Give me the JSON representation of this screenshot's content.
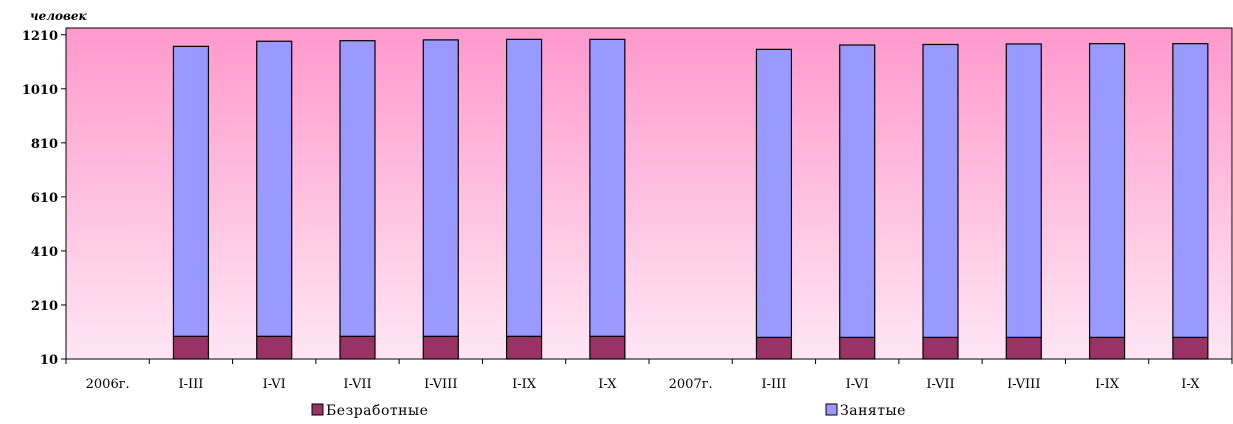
{
  "chart_data": {
    "type": "bar",
    "stacked": true,
    "ylabel": "человек",
    "ylim": [
      10,
      1235
    ],
    "yticks": [
      10,
      210,
      410,
      610,
      810,
      1010,
      1210
    ],
    "grid": false,
    "legend_position": "bottom",
    "categories": [
      "2006г.",
      "I-III",
      "I-VI",
      "I-VII",
      "I-VIII",
      "I-IX",
      "I-X",
      "2007г.",
      "I-III",
      "I-VI",
      "I-VII",
      "I-VIII",
      "I-IX",
      "I-X"
    ],
    "series": [
      {
        "name": "Безработные",
        "color": "#993366",
        "values": [
          null,
          84,
          84,
          84,
          84,
          84,
          84,
          null,
          80,
          80,
          80,
          80,
          80,
          80
        ]
      },
      {
        "name": "Занятые",
        "color": "#9999ff",
        "values": [
          null,
          1073,
          1092,
          1094,
          1097,
          1099,
          1099,
          null,
          1066,
          1082,
          1084,
          1086,
          1087,
          1087
        ]
      }
    ],
    "background_gradient": [
      "#ff99cc",
      "#ffe6f3"
    ]
  }
}
